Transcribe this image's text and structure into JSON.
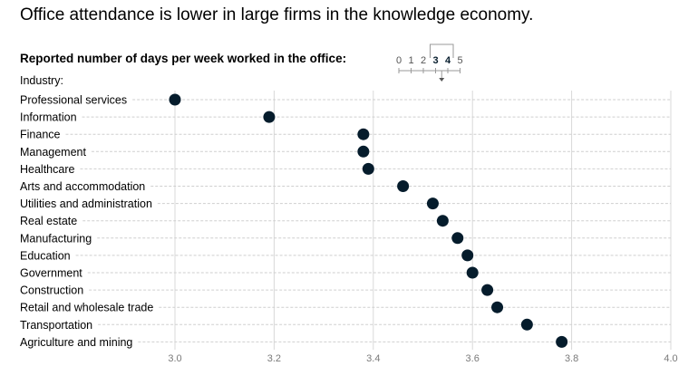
{
  "title": "Office attendance is lower in large firms in the knowledge economy.",
  "subtitle": "Reported number of days per week worked in the office:",
  "category_header": "Industry:",
  "scale_key": {
    "numbers": [
      "0",
      "1",
      "2",
      "3",
      "4",
      "5"
    ],
    "bold_numbers": [
      "3",
      "4"
    ]
  },
  "colors": {
    "dot": "#051c2c",
    "grid": "#d9d9d9",
    "guide": "#cfcfcf"
  },
  "chart_data": {
    "type": "scatter",
    "title": "Office attendance is lower in large firms in the knowledge economy.",
    "subtitle": "Reported number of days per week worked in the office:",
    "xlabel": "",
    "ylabel": "Industry:",
    "xlim": [
      3.0,
      4.0
    ],
    "x_ticks": [
      "3.0",
      "3.2",
      "3.4",
      "3.6",
      "3.8",
      "4.0"
    ],
    "x_tick_values": [
      3.0,
      3.2,
      3.4,
      3.6,
      3.8,
      4.0
    ],
    "grid": true,
    "categories": [
      "Professional services",
      "Information",
      "Finance",
      "Management",
      "Healthcare",
      "Arts and accommodation",
      "Utilities and administration",
      "Real estate",
      "Manufacturing",
      "Education",
      "Government",
      "Construction",
      "Retail and wholesale trade",
      "Transportation",
      "Agriculture and mining"
    ],
    "values": [
      3.0,
      3.19,
      3.38,
      3.38,
      3.39,
      3.46,
      3.52,
      3.54,
      3.57,
      3.59,
      3.6,
      3.63,
      3.65,
      3.71,
      3.78
    ]
  }
}
